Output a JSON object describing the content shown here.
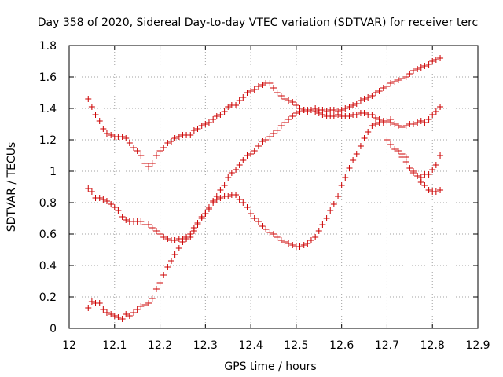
{
  "chart_data": {
    "type": "scatter",
    "title": "Day 358 of 2020, Sidereal Day-to-day VTEC variation (SDTVAR) for receiver terc",
    "xlabel": "GPS time / hours",
    "ylabel": "SDTVAR / TECUs",
    "xlim": [
      12,
      12.9
    ],
    "ylim": [
      0,
      1.8
    ],
    "xticks": [
      "12",
      "12.1",
      "12.2",
      "12.3",
      "12.4",
      "12.5",
      "12.6",
      "12.7",
      "12.8",
      "12.9"
    ],
    "yticks": [
      "0",
      "0.2",
      "0.4",
      "0.6",
      "0.8",
      "1",
      "1.2",
      "1.4",
      "1.6",
      "1.8"
    ],
    "grid": true,
    "marker": "+",
    "color": "#cc0000",
    "series": [
      {
        "name": "series-1",
        "points": [
          [
            12.042,
            1.46
          ],
          [
            12.05,
            1.41
          ],
          [
            12.058,
            1.36
          ],
          [
            12.067,
            1.32
          ],
          [
            12.075,
            1.27
          ],
          [
            12.083,
            1.24
          ],
          [
            12.092,
            1.23
          ],
          [
            12.1,
            1.22
          ],
          [
            12.108,
            1.22
          ],
          [
            12.117,
            1.22
          ],
          [
            12.125,
            1.21
          ],
          [
            12.133,
            1.18
          ],
          [
            12.142,
            1.15
          ],
          [
            12.15,
            1.13
          ],
          [
            12.158,
            1.1
          ],
          [
            12.167,
            1.05
          ],
          [
            12.175,
            1.03
          ],
          [
            12.183,
            1.05
          ],
          [
            12.192,
            1.1
          ],
          [
            12.2,
            1.13
          ],
          [
            12.208,
            1.15
          ],
          [
            12.217,
            1.18
          ],
          [
            12.225,
            1.19
          ],
          [
            12.233,
            1.21
          ],
          [
            12.242,
            1.22
          ],
          [
            12.25,
            1.23
          ],
          [
            12.258,
            1.23
          ],
          [
            12.267,
            1.23
          ],
          [
            12.275,
            1.26
          ],
          [
            12.283,
            1.27
          ],
          [
            12.292,
            1.29
          ],
          [
            12.3,
            1.3
          ],
          [
            12.308,
            1.31
          ],
          [
            12.317,
            1.33
          ],
          [
            12.325,
            1.35
          ],
          [
            12.333,
            1.36
          ],
          [
            12.342,
            1.38
          ],
          [
            12.35,
            1.41
          ],
          [
            12.358,
            1.42
          ],
          [
            12.367,
            1.42
          ],
          [
            12.375,
            1.45
          ],
          [
            12.383,
            1.47
          ],
          [
            12.392,
            1.5
          ],
          [
            12.4,
            1.51
          ],
          [
            12.408,
            1.52
          ],
          [
            12.417,
            1.54
          ],
          [
            12.425,
            1.55
          ],
          [
            12.433,
            1.56
          ],
          [
            12.442,
            1.56
          ],
          [
            12.45,
            1.53
          ],
          [
            12.458,
            1.5
          ],
          [
            12.467,
            1.48
          ],
          [
            12.475,
            1.46
          ],
          [
            12.483,
            1.45
          ],
          [
            12.492,
            1.44
          ],
          [
            12.5,
            1.42
          ],
          [
            12.508,
            1.4
          ],
          [
            12.517,
            1.39
          ],
          [
            12.525,
            1.38
          ],
          [
            12.533,
            1.39
          ],
          [
            12.542,
            1.38
          ],
          [
            12.55,
            1.37
          ],
          [
            12.558,
            1.36
          ],
          [
            12.567,
            1.35
          ],
          [
            12.575,
            1.35
          ],
          [
            12.583,
            1.35
          ],
          [
            12.592,
            1.36
          ],
          [
            12.6,
            1.35
          ],
          [
            12.608,
            1.35
          ],
          [
            12.617,
            1.35
          ],
          [
            12.625,
            1.36
          ],
          [
            12.633,
            1.36
          ],
          [
            12.642,
            1.37
          ],
          [
            12.65,
            1.37
          ],
          [
            12.658,
            1.36
          ],
          [
            12.667,
            1.36
          ],
          [
            12.675,
            1.34
          ],
          [
            12.683,
            1.33
          ],
          [
            12.692,
            1.32
          ],
          [
            12.7,
            1.32
          ],
          [
            12.708,
            1.31
          ],
          [
            12.717,
            1.3
          ],
          [
            12.725,
            1.29
          ],
          [
            12.733,
            1.28
          ],
          [
            12.742,
            1.29
          ],
          [
            12.75,
            1.3
          ],
          [
            12.758,
            1.3
          ],
          [
            12.767,
            1.31
          ],
          [
            12.775,
            1.32
          ],
          [
            12.783,
            1.31
          ],
          [
            12.792,
            1.33
          ],
          [
            12.8,
            1.36
          ],
          [
            12.808,
            1.38
          ],
          [
            12.817,
            1.41
          ]
        ]
      },
      {
        "name": "series-2",
        "points": [
          [
            12.042,
            0.89
          ],
          [
            12.05,
            0.87
          ],
          [
            12.058,
            0.83
          ],
          [
            12.067,
            0.83
          ],
          [
            12.075,
            0.82
          ],
          [
            12.083,
            0.81
          ],
          [
            12.092,
            0.79
          ],
          [
            12.1,
            0.77
          ],
          [
            12.108,
            0.75
          ],
          [
            12.117,
            0.71
          ],
          [
            12.125,
            0.69
          ],
          [
            12.133,
            0.68
          ],
          [
            12.142,
            0.68
          ],
          [
            12.15,
            0.68
          ],
          [
            12.158,
            0.68
          ],
          [
            12.167,
            0.66
          ],
          [
            12.175,
            0.66
          ],
          [
            12.183,
            0.64
          ],
          [
            12.192,
            0.62
          ],
          [
            12.2,
            0.6
          ],
          [
            12.208,
            0.58
          ],
          [
            12.217,
            0.57
          ],
          [
            12.225,
            0.56
          ],
          [
            12.233,
            0.56
          ],
          [
            12.242,
            0.57
          ],
          [
            12.25,
            0.57
          ],
          [
            12.258,
            0.57
          ],
          [
            12.267,
            0.58
          ],
          [
            12.275,
            0.62
          ],
          [
            12.283,
            0.66
          ],
          [
            12.292,
            0.7
          ],
          [
            12.3,
            0.73
          ],
          [
            12.308,
            0.76
          ],
          [
            12.317,
            0.8
          ],
          [
            12.325,
            0.82
          ],
          [
            12.333,
            0.83
          ],
          [
            12.342,
            0.84
          ],
          [
            12.35,
            0.84
          ],
          [
            12.358,
            0.85
          ],
          [
            12.367,
            0.85
          ],
          [
            12.375,
            0.82
          ],
          [
            12.383,
            0.8
          ],
          [
            12.392,
            0.77
          ],
          [
            12.4,
            0.73
          ],
          [
            12.408,
            0.7
          ],
          [
            12.417,
            0.68
          ],
          [
            12.425,
            0.65
          ],
          [
            12.433,
            0.63
          ],
          [
            12.442,
            0.61
          ],
          [
            12.45,
            0.6
          ],
          [
            12.458,
            0.58
          ],
          [
            12.467,
            0.56
          ],
          [
            12.475,
            0.55
          ],
          [
            12.483,
            0.54
          ],
          [
            12.492,
            0.53
          ],
          [
            12.5,
            0.52
          ],
          [
            12.508,
            0.52
          ],
          [
            12.517,
            0.53
          ],
          [
            12.525,
            0.54
          ],
          [
            12.533,
            0.56
          ],
          [
            12.542,
            0.58
          ],
          [
            12.55,
            0.62
          ],
          [
            12.558,
            0.66
          ],
          [
            12.567,
            0.7
          ],
          [
            12.575,
            0.75
          ],
          [
            12.583,
            0.79
          ],
          [
            12.592,
            0.84
          ],
          [
            12.6,
            0.91
          ],
          [
            12.608,
            0.96
          ],
          [
            12.617,
            1.02
          ],
          [
            12.625,
            1.07
          ],
          [
            12.633,
            1.11
          ],
          [
            12.642,
            1.16
          ],
          [
            12.65,
            1.21
          ],
          [
            12.658,
            1.25
          ],
          [
            12.667,
            1.29
          ],
          [
            12.675,
            1.3
          ],
          [
            12.683,
            1.31
          ],
          [
            12.692,
            1.31
          ],
          [
            12.7,
            1.32
          ],
          [
            12.708,
            1.33
          ],
          [
            12.717,
            1.14
          ],
          [
            12.725,
            1.13
          ],
          [
            12.733,
            1.09
          ],
          [
            12.742,
            1.06
          ],
          [
            12.75,
            1.02
          ],
          [
            12.758,
            0.99
          ],
          [
            12.767,
            0.97
          ],
          [
            12.775,
            0.96
          ],
          [
            12.783,
            0.98
          ],
          [
            12.792,
            0.98
          ],
          [
            12.8,
            1.01
          ],
          [
            12.808,
            1.04
          ],
          [
            12.817,
            1.1
          ]
        ]
      },
      {
        "name": "series-3",
        "points": [
          [
            12.042,
            0.13
          ],
          [
            12.05,
            0.17
          ],
          [
            12.058,
            0.16
          ],
          [
            12.067,
            0.16
          ],
          [
            12.075,
            0.12
          ],
          [
            12.083,
            0.1
          ],
          [
            12.092,
            0.09
          ],
          [
            12.1,
            0.08
          ],
          [
            12.108,
            0.07
          ],
          [
            12.117,
            0.06
          ],
          [
            12.125,
            0.09
          ],
          [
            12.133,
            0.08
          ],
          [
            12.142,
            0.1
          ],
          [
            12.15,
            0.12
          ],
          [
            12.158,
            0.14
          ],
          [
            12.167,
            0.15
          ],
          [
            12.175,
            0.16
          ],
          [
            12.183,
            0.19
          ],
          [
            12.192,
            0.25
          ],
          [
            12.2,
            0.29
          ],
          [
            12.208,
            0.34
          ],
          [
            12.217,
            0.39
          ],
          [
            12.225,
            0.43
          ],
          [
            12.233,
            0.47
          ],
          [
            12.242,
            0.51
          ],
          [
            12.25,
            0.55
          ],
          [
            12.258,
            0.58
          ],
          [
            12.267,
            0.6
          ],
          [
            12.275,
            0.64
          ],
          [
            12.283,
            0.67
          ],
          [
            12.292,
            0.71
          ],
          [
            12.3,
            0.73
          ],
          [
            12.308,
            0.77
          ],
          [
            12.317,
            0.81
          ],
          [
            12.325,
            0.84
          ],
          [
            12.333,
            0.88
          ],
          [
            12.342,
            0.91
          ],
          [
            12.35,
            0.96
          ],
          [
            12.358,
            0.99
          ],
          [
            12.367,
            1.01
          ],
          [
            12.375,
            1.04
          ],
          [
            12.383,
            1.07
          ],
          [
            12.392,
            1.1
          ],
          [
            12.4,
            1.11
          ],
          [
            12.408,
            1.13
          ],
          [
            12.417,
            1.16
          ],
          [
            12.425,
            1.19
          ],
          [
            12.433,
            1.2
          ],
          [
            12.442,
            1.22
          ],
          [
            12.45,
            1.24
          ],
          [
            12.458,
            1.26
          ],
          [
            12.467,
            1.29
          ],
          [
            12.475,
            1.31
          ],
          [
            12.483,
            1.33
          ],
          [
            12.492,
            1.35
          ],
          [
            12.5,
            1.37
          ],
          [
            12.508,
            1.38
          ],
          [
            12.517,
            1.39
          ],
          [
            12.525,
            1.39
          ],
          [
            12.533,
            1.39
          ],
          [
            12.542,
            1.4
          ],
          [
            12.55,
            1.39
          ],
          [
            12.558,
            1.39
          ],
          [
            12.567,
            1.38
          ],
          [
            12.575,
            1.39
          ],
          [
            12.583,
            1.39
          ],
          [
            12.592,
            1.38
          ],
          [
            12.6,
            1.39
          ],
          [
            12.608,
            1.4
          ],
          [
            12.617,
            1.41
          ],
          [
            12.625,
            1.42
          ],
          [
            12.633,
            1.43
          ],
          [
            12.642,
            1.45
          ],
          [
            12.65,
            1.46
          ],
          [
            12.658,
            1.47
          ],
          [
            12.667,
            1.48
          ],
          [
            12.675,
            1.5
          ],
          [
            12.683,
            1.51
          ],
          [
            12.692,
            1.53
          ],
          [
            12.7,
            1.54
          ],
          [
            12.708,
            1.56
          ],
          [
            12.717,
            1.57
          ],
          [
            12.725,
            1.58
          ],
          [
            12.733,
            1.59
          ],
          [
            12.742,
            1.6
          ],
          [
            12.75,
            1.62
          ],
          [
            12.758,
            1.64
          ],
          [
            12.767,
            1.65
          ],
          [
            12.775,
            1.66
          ],
          [
            12.783,
            1.67
          ],
          [
            12.792,
            1.68
          ],
          [
            12.8,
            1.7
          ],
          [
            12.808,
            1.71
          ],
          [
            12.817,
            1.72
          ]
        ]
      },
      {
        "name": "series-4",
        "points": [
          [
            12.7,
            1.2
          ],
          [
            12.708,
            1.17
          ],
          [
            12.733,
            1.11
          ],
          [
            12.742,
            1.09
          ],
          [
            12.758,
            1.0
          ],
          [
            12.775,
            0.93
          ],
          [
            12.783,
            0.91
          ],
          [
            12.792,
            0.88
          ],
          [
            12.8,
            0.87
          ],
          [
            12.808,
            0.87
          ],
          [
            12.817,
            0.88
          ]
        ]
      }
    ]
  }
}
